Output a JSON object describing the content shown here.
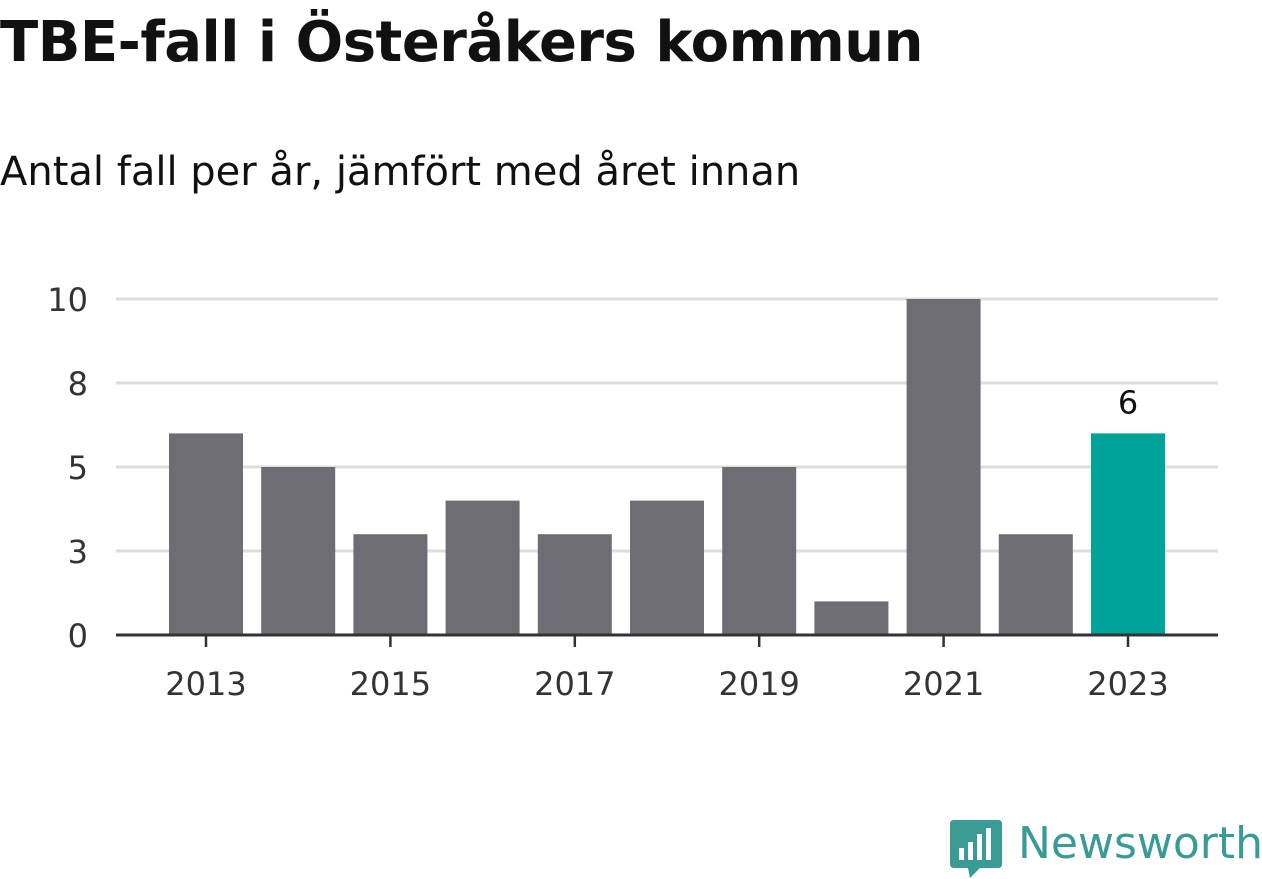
{
  "title": "TBE-fall i Österåkers kommun",
  "subtitle": "Antal fall per år, jämfört med året innan",
  "brand": {
    "name": "Newsworthy",
    "icon": "newsworthy-logo-icon",
    "color": "#3a9a94"
  },
  "colors": {
    "bar": "#6e6d73",
    "highlight": "#00a39a",
    "grid": "#dddddd",
    "axis": "#333333",
    "tick_text": "#333333"
  },
  "chart_data": {
    "type": "bar",
    "categories": [
      "2013",
      "2014",
      "2015",
      "2016",
      "2017",
      "2018",
      "2019",
      "2020",
      "2021",
      "2022",
      "2023"
    ],
    "values": [
      6,
      5,
      3,
      4,
      3,
      4,
      5,
      1,
      10,
      3,
      6
    ],
    "highlight_index": 10,
    "data_labels": [
      {
        "index": 10,
        "text": "6"
      }
    ],
    "x_tick_labels": [
      "2013",
      "2015",
      "2017",
      "2019",
      "2021",
      "2023"
    ],
    "y_ticks": [
      {
        "value": 0,
        "label": "0"
      },
      {
        "value": 2.5,
        "label": "3"
      },
      {
        "value": 5,
        "label": "5"
      },
      {
        "value": 7.5,
        "label": "8"
      },
      {
        "value": 10,
        "label": "10"
      }
    ],
    "ylim": [
      0,
      10
    ],
    "grid": true,
    "legend": "none",
    "xlabel": "",
    "ylabel": ""
  }
}
